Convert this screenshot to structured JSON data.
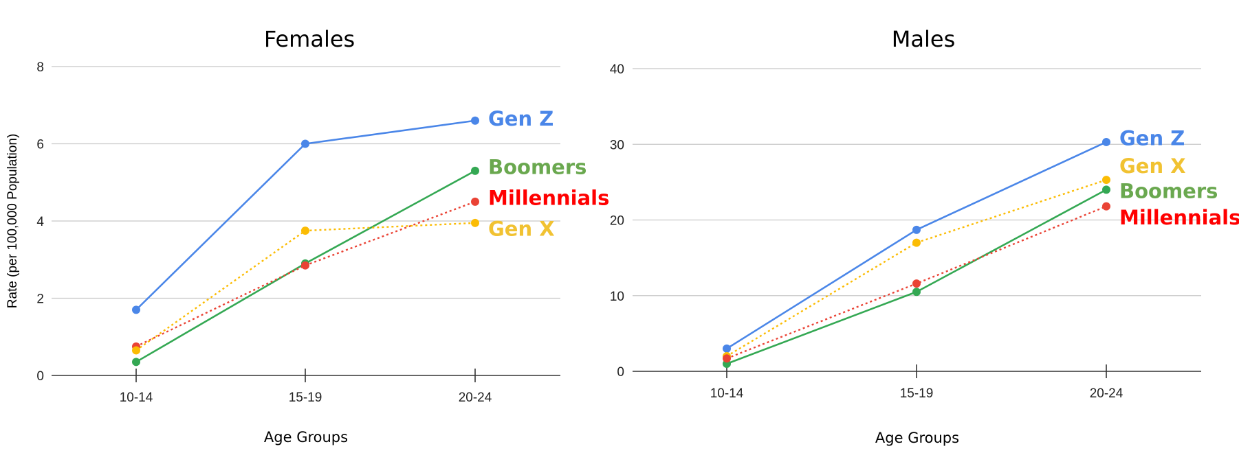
{
  "chart_data": [
    {
      "type": "line",
      "title": "Females",
      "xlabel": "Age Groups",
      "ylabel": "Rate (per 100,000 Population)",
      "categories": [
        "10-14",
        "15-19",
        "20-24"
      ],
      "ylim": [
        0,
        8
      ],
      "yticks": [
        0,
        2,
        4,
        6,
        8
      ],
      "grid": true,
      "series": [
        {
          "name": "Gen Z",
          "color": "#4a86e8",
          "dash": "solid",
          "values": [
            1.7,
            6.0,
            6.6
          ]
        },
        {
          "name": "Boomers",
          "color": "#34a853",
          "dash": "solid",
          "values": [
            0.35,
            2.9,
            5.3
          ]
        },
        {
          "name": "Millennials",
          "color": "#ea4335",
          "dash": "dotted",
          "values": [
            0.75,
            2.85,
            4.5
          ]
        },
        {
          "name": "Gen X",
          "color": "#fbbc04",
          "dash": "dotted",
          "values": [
            0.65,
            3.75,
            3.95
          ]
        }
      ],
      "labels": [
        {
          "text": "Gen Z",
          "color": "#4a86e8",
          "y": 6.65
        },
        {
          "text": "Boomers",
          "color": "#6aa84f",
          "y": 5.4
        },
        {
          "text": "Millennials",
          "color": "#ff0000",
          "y": 4.6
        },
        {
          "text": "Gen X",
          "color": "#f1c232",
          "y": 3.8
        }
      ]
    },
    {
      "type": "line",
      "title": "Males",
      "xlabel": "Age Groups",
      "ylabel": "",
      "categories": [
        "10-14",
        "15-19",
        "20-24"
      ],
      "ylim": [
        0,
        40
      ],
      "yticks": [
        0,
        10,
        20,
        30,
        40
      ],
      "grid": true,
      "series": [
        {
          "name": "Gen Z",
          "color": "#4a86e8",
          "dash": "solid",
          "values": [
            3.0,
            18.7,
            30.3
          ]
        },
        {
          "name": "Gen X",
          "color": "#fbbc04",
          "dash": "dotted",
          "values": [
            2.0,
            17.0,
            25.3
          ]
        },
        {
          "name": "Boomers",
          "color": "#34a853",
          "dash": "solid",
          "values": [
            1.0,
            10.5,
            24.0
          ]
        },
        {
          "name": "Millennials",
          "color": "#ea4335",
          "dash": "dotted",
          "values": [
            1.7,
            11.6,
            21.8
          ]
        }
      ],
      "labels": [
        {
          "text": "Gen Z",
          "color": "#4a86e8",
          "y": 30.8
        },
        {
          "text": "Gen X",
          "color": "#f1c232",
          "y": 27.1
        },
        {
          "text": "Boomers",
          "color": "#6aa84f",
          "y": 23.8
        },
        {
          "text": "Millennials",
          "color": "#ff0000",
          "y": 20.3
        }
      ]
    }
  ]
}
